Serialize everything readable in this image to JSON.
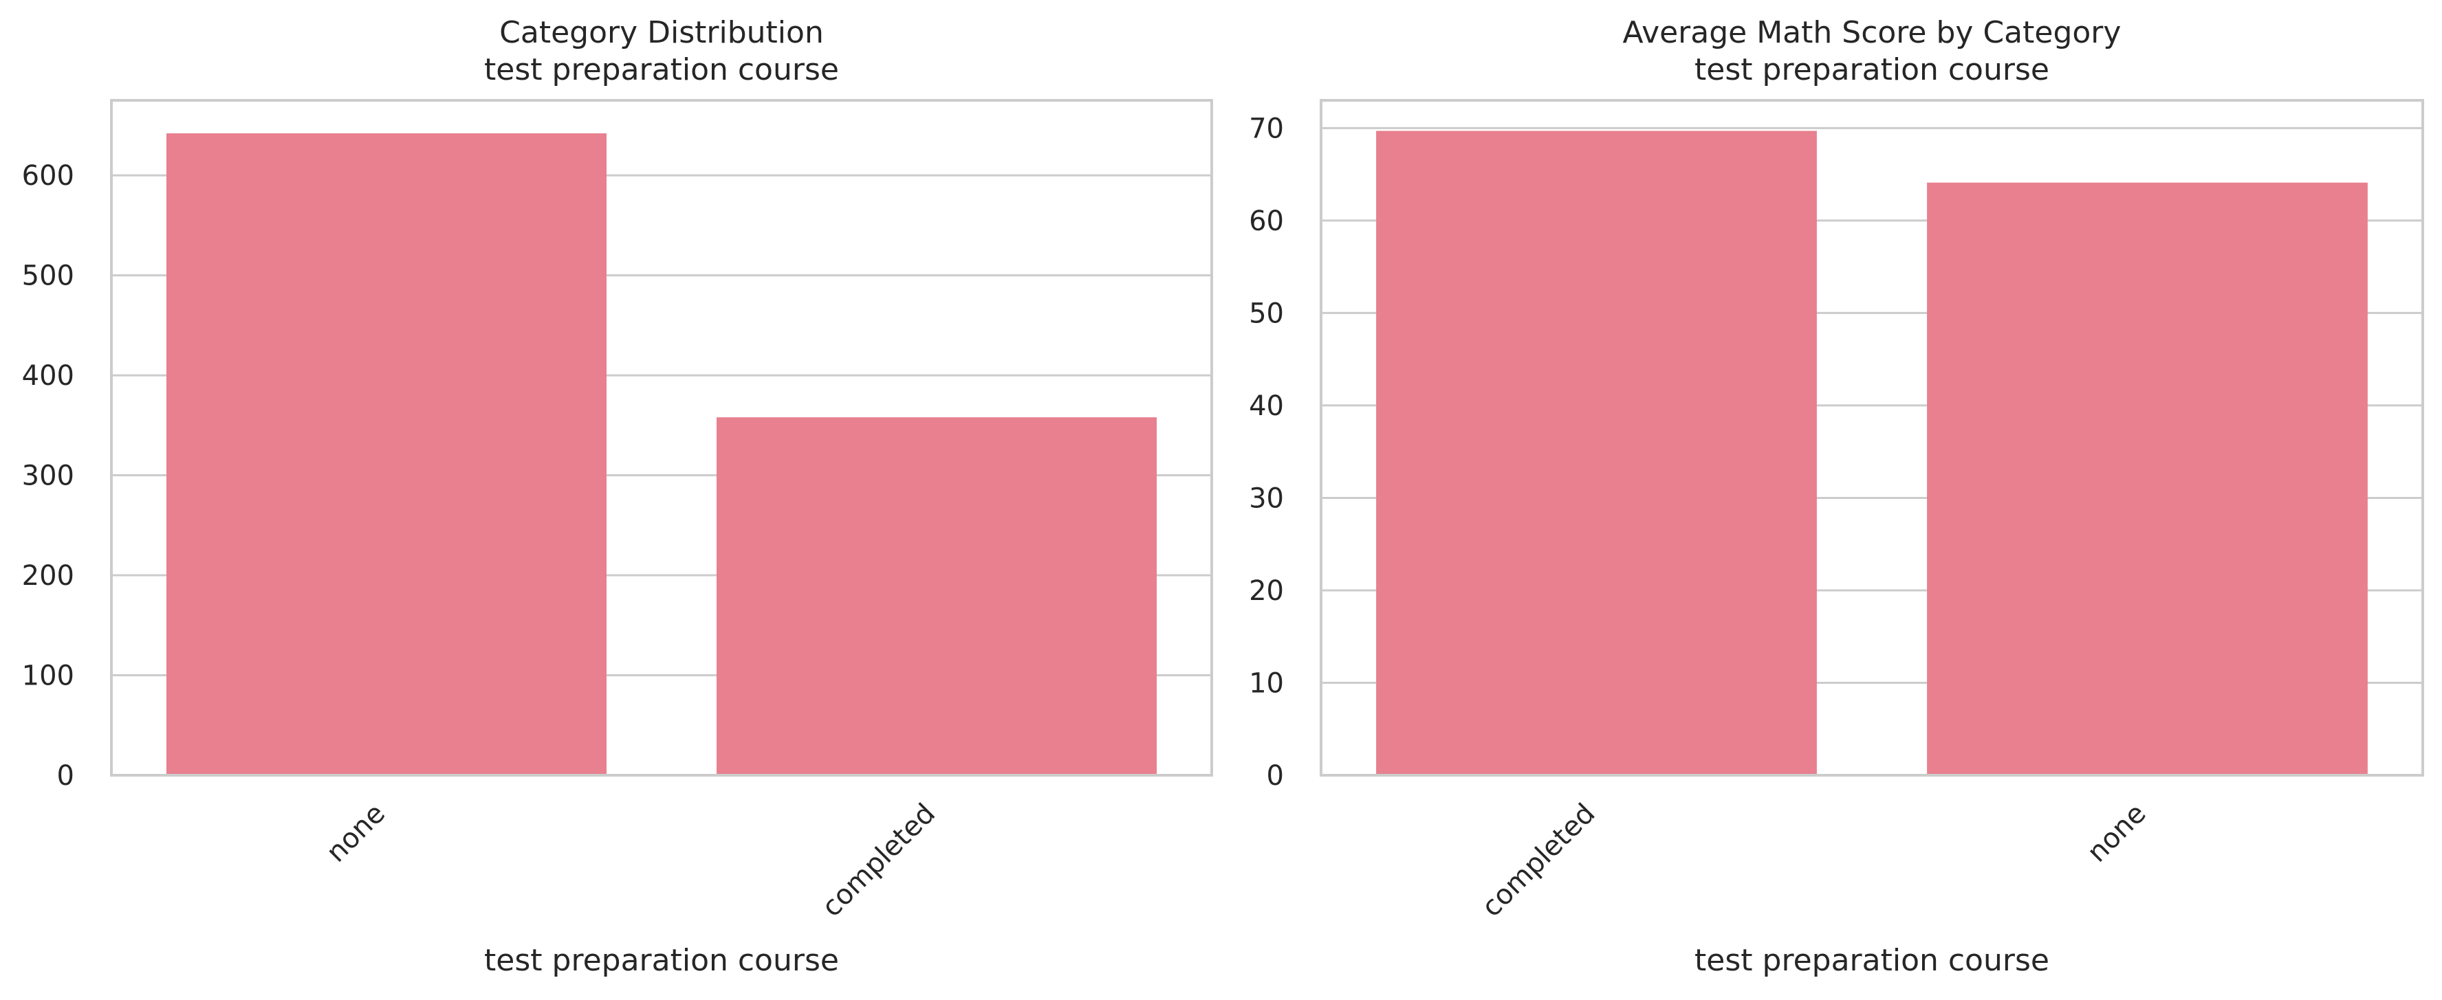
{
  "chart_data": [
    {
      "type": "bar",
      "title": "Category Distribution",
      "subtitle": "test preparation course",
      "xlabel": "test preparation course",
      "ylabel": "",
      "categories": [
        "none",
        "completed"
      ],
      "values": [
        642,
        358
      ],
      "ylim": [
        0,
        675
      ],
      "yticks": [
        0,
        100,
        200,
        300,
        400,
        500,
        600
      ],
      "grid": true,
      "color": "#e8808f"
    },
    {
      "type": "bar",
      "title": "Average Math Score by Category",
      "subtitle": "test preparation course",
      "xlabel": "test preparation course",
      "ylabel": "",
      "categories": [
        "completed",
        "none"
      ],
      "values": [
        69.7,
        64.1
      ],
      "ylim": [
        0,
        73
      ],
      "yticks": [
        0,
        10,
        20,
        30,
        40,
        50,
        60,
        70
      ],
      "grid": true,
      "color": "#e8808f"
    }
  ]
}
